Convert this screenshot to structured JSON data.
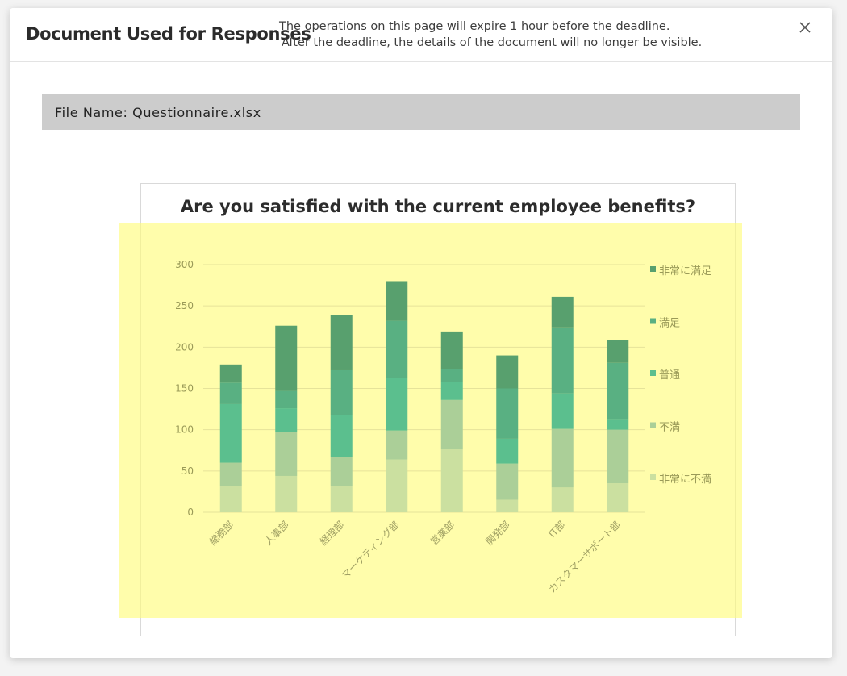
{
  "modal": {
    "title": "Document Used for Responses",
    "notice_line1": "The operations on this page will expire 1 hour before the deadline.",
    "notice_line2": "After the deadline, the details of the document will no longer be visible.",
    "close_icon": "close-icon"
  },
  "file": {
    "label": "File Name: Questionnaire.xlsx"
  },
  "colors": {
    "highlight": "#fffc78",
    "series": [
      "#cbe0a0",
      "#abcf98",
      "#5bbf8e",
      "#59b082",
      "#58a06e"
    ]
  },
  "chart_data": {
    "type": "bar",
    "stacked": true,
    "title": "Are you satisfied with the current employee benefits?",
    "xlabel": "",
    "ylabel": "",
    "ylim": [
      0,
      300
    ],
    "yticks": [
      0,
      50,
      100,
      150,
      200,
      250,
      300
    ],
    "grid": true,
    "legend_position": "right",
    "categories": [
      "総務部",
      "人事部",
      "経理部",
      "マーケティング部",
      "営業部",
      "開発部",
      "IT部",
      "カスタマーサポート部"
    ],
    "series": [
      {
        "name": "非常に不満",
        "color": "#cbe0a0",
        "values": [
          32,
          44,
          32,
          64,
          76,
          15,
          30,
          35
        ]
      },
      {
        "name": "不満",
        "color": "#abcf98",
        "values": [
          28,
          53,
          35,
          35,
          60,
          44,
          71,
          65
        ]
      },
      {
        "name": "普通",
        "color": "#5bbf8e",
        "values": [
          71,
          29,
          51,
          64,
          22,
          30,
          43,
          12
        ]
      },
      {
        "name": "満足",
        "color": "#59b082",
        "values": [
          26,
          21,
          54,
          69,
          15,
          61,
          80,
          69
        ]
      },
      {
        "name": "非常に満足",
        "color": "#58a06e",
        "values": [
          22,
          79,
          67,
          48,
          46,
          40,
          37,
          28
        ]
      }
    ]
  }
}
